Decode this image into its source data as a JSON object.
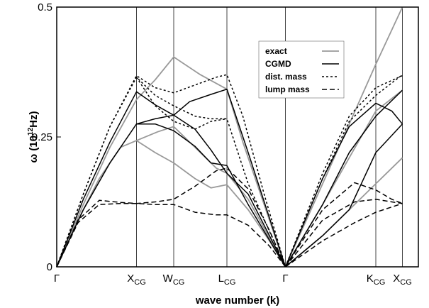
{
  "chart_data": {
    "type": "line",
    "title": "",
    "xlabel": "wave number (k)",
    "ylabel": "ω (10¹²Hz)",
    "ylabel_parts": {
      "prefix": "ω (10",
      "sup": "12",
      "suffix": "Hz)"
    },
    "ylim": [
      0,
      0.5
    ],
    "yticks": [
      "0",
      "0.25",
      "0.5"
    ],
    "xlim": [
      0,
      6.8
    ],
    "xticks": [
      {
        "label": "Γ",
        "sub": "",
        "x": 0
      },
      {
        "label": "X",
        "sub": "CG",
        "x": 1.5
      },
      {
        "label": "W",
        "sub": "CG",
        "x": 2.2
      },
      {
        "label": "L",
        "sub": "CG",
        "x": 3.2
      },
      {
        "label": "Γ",
        "sub": "",
        "x": 4.3
      },
      {
        "label": "K",
        "sub": "CG",
        "x": 6.0
      },
      {
        "label": "X",
        "sub": "CG",
        "x": 6.5
      }
    ],
    "grid": "vertical lines at symmetry points",
    "legend_position": "top-right",
    "series": [
      {
        "name": "exact",
        "style": "solid",
        "color": "#999999",
        "width": 1.8,
        "curves": [
          [
            [
              0,
              0
            ],
            [
              0.4,
              0.09
            ],
            [
              0.8,
              0.17
            ],
            [
              1.2,
              0.23
            ],
            [
              1.5,
              0.243
            ],
            [
              1.85,
              0.22
            ],
            [
              2.2,
              0.2
            ],
            [
              2.6,
              0.17
            ],
            [
              2.9,
              0.152
            ],
            [
              3.2,
              0.158
            ],
            [
              3.6,
              0.11
            ],
            [
              4.0,
              0.05
            ],
            [
              4.3,
              0
            ]
          ],
          [
            [
              0,
              0
            ],
            [
              0.5,
              0.12
            ],
            [
              1.0,
              0.23
            ],
            [
              1.5,
              0.322
            ],
            [
              1.85,
              0.36
            ],
            [
              2.2,
              0.404
            ],
            [
              2.7,
              0.37
            ],
            [
              3.2,
              0.342
            ],
            [
              3.5,
              0.24
            ],
            [
              3.9,
              0.12
            ],
            [
              4.3,
              0
            ]
          ],
          [
            [
              1.5,
              0.243
            ],
            [
              1.9,
              0.26
            ],
            [
              2.2,
              0.27
            ],
            [
              2.6,
              0.23
            ],
            [
              3.0,
              0.19
            ],
            [
              3.2,
              0.18
            ],
            [
              3.6,
              0.13
            ],
            [
              4.3,
              0
            ]
          ],
          [
            [
              4.3,
              0
            ],
            [
              5.0,
              0.16
            ],
            [
              6.0,
              0.39
            ],
            [
              6.5,
              0.5
            ]
          ],
          [
            [
              4.3,
              0
            ],
            [
              5.0,
              0.12
            ],
            [
              6.0,
              0.3
            ],
            [
              6.5,
              0.34
            ]
          ],
          [
            [
              4.3,
              0
            ],
            [
              5.0,
              0.06
            ],
            [
              6.0,
              0.16
            ],
            [
              6.5,
              0.21
            ]
          ]
        ]
      },
      {
        "name": "CGMD",
        "style": "solid",
        "color": "#000000",
        "width": 1.5,
        "curves": [
          [
            [
              0,
              0
            ],
            [
              0.5,
              0.13
            ],
            [
              1.0,
              0.24
            ],
            [
              1.5,
              0.337
            ],
            [
              1.85,
              0.312
            ],
            [
              2.2,
              0.292
            ],
            [
              2.5,
              0.318
            ],
            [
              2.9,
              0.332
            ],
            [
              3.2,
              0.342
            ],
            [
              3.6,
              0.22
            ],
            [
              4.3,
              0
            ]
          ],
          [
            [
              0,
              0
            ],
            [
              0.5,
              0.11
            ],
            [
              1.0,
              0.2
            ],
            [
              1.5,
              0.275
            ],
            [
              1.85,
              0.285
            ],
            [
              2.2,
              0.292
            ],
            [
              2.6,
              0.265
            ],
            [
              2.9,
              0.225
            ],
            [
              3.2,
              0.18
            ],
            [
              3.6,
              0.14
            ],
            [
              4.3,
              0
            ]
          ],
          [
            [
              1.5,
              0.275
            ],
            [
              1.85,
              0.275
            ],
            [
              2.2,
              0.262
            ],
            [
              2.6,
              0.232
            ],
            [
              2.9,
              0.2
            ],
            [
              3.2,
              0.195
            ],
            [
              3.6,
              0.12
            ],
            [
              4.3,
              0
            ]
          ],
          [
            [
              4.3,
              0
            ],
            [
              5.0,
              0.17
            ],
            [
              5.5,
              0.27
            ],
            [
              6.0,
              0.315
            ],
            [
              6.3,
              0.3
            ],
            [
              6.5,
              0.275
            ]
          ],
          [
            [
              4.3,
              0
            ],
            [
              5.0,
              0.12
            ],
            [
              5.5,
              0.22
            ],
            [
              6.0,
              0.29
            ],
            [
              6.5,
              0.34
            ]
          ],
          [
            [
              4.3,
              0
            ],
            [
              5.0,
              0.06
            ],
            [
              5.5,
              0.11
            ],
            [
              6.0,
              0.22
            ],
            [
              6.5,
              0.275
            ]
          ]
        ]
      },
      {
        "name": "dist. mass",
        "style": "dotted",
        "color": "#000000",
        "width": 1.5,
        "curves": [
          [
            [
              0,
              0
            ],
            [
              0.5,
              0.14
            ],
            [
              1.0,
              0.27
            ],
            [
              1.5,
              0.368
            ],
            [
              1.85,
              0.345
            ],
            [
              2.2,
              0.335
            ],
            [
              2.6,
              0.35
            ],
            [
              3.0,
              0.365
            ],
            [
              3.2,
              0.37
            ],
            [
              3.5,
              0.29
            ],
            [
              3.9,
              0.14
            ],
            [
              4.3,
              0
            ]
          ],
          [
            [
              0,
              0
            ],
            [
              0.5,
              0.14
            ],
            [
              1.0,
              0.27
            ],
            [
              1.5,
              0.365
            ],
            [
              1.85,
              0.33
            ],
            [
              2.2,
              0.31
            ],
            [
              2.6,
              0.29
            ],
            [
              2.9,
              0.285
            ],
            [
              3.2,
              0.285
            ],
            [
              3.6,
              0.16
            ],
            [
              4.3,
              0
            ]
          ],
          [
            [
              1.5,
              0.365
            ],
            [
              1.85,
              0.31
            ],
            [
              2.2,
              0.28
            ],
            [
              2.6,
              0.265
            ],
            [
              2.9,
              0.28
            ],
            [
              3.2,
              0.285
            ]
          ],
          [
            [
              4.3,
              0
            ],
            [
              5.0,
              0.18
            ],
            [
              5.5,
              0.29
            ],
            [
              6.0,
              0.345
            ],
            [
              6.5,
              0.368
            ]
          ],
          [
            [
              4.3,
              0
            ],
            [
              5.0,
              0.17
            ],
            [
              5.5,
              0.28
            ],
            [
              6.0,
              0.33
            ],
            [
              6.5,
              0.37
            ]
          ]
        ]
      },
      {
        "name": "lump mass",
        "style": "dashed",
        "color": "#000000",
        "width": 1.5,
        "curves": [
          [
            [
              0,
              0
            ],
            [
              0.4,
              0.09
            ],
            [
              0.8,
              0.128
            ],
            [
              1.2,
              0.124
            ],
            [
              1.5,
              0.122
            ],
            [
              1.85,
              0.125
            ],
            [
              2.2,
              0.13
            ],
            [
              2.6,
              0.155
            ],
            [
              3.0,
              0.185
            ],
            [
              3.2,
              0.19
            ],
            [
              3.6,
              0.15
            ],
            [
              4.0,
              0.07
            ],
            [
              4.3,
              0
            ]
          ],
          [
            [
              0,
              0
            ],
            [
              0.4,
              0.085
            ],
            [
              0.8,
              0.12
            ],
            [
              1.2,
              0.122
            ],
            [
              1.5,
              0.122
            ],
            [
              1.85,
              0.12
            ],
            [
              2.2,
              0.12
            ],
            [
              2.6,
              0.105
            ],
            [
              3.0,
              0.1
            ],
            [
              3.2,
              0.1
            ],
            [
              3.6,
              0.08
            ],
            [
              4.0,
              0.04
            ],
            [
              4.3,
              0
            ]
          ],
          [
            [
              4.3,
              0
            ],
            [
              5.0,
              0.11
            ],
            [
              5.6,
              0.162
            ],
            [
              6.0,
              0.148
            ],
            [
              6.3,
              0.13
            ],
            [
              6.5,
              0.122
            ]
          ],
          [
            [
              4.3,
              0
            ],
            [
              5.0,
              0.09
            ],
            [
              5.6,
              0.125
            ],
            [
              6.0,
              0.13
            ],
            [
              6.3,
              0.125
            ],
            [
              6.5,
              0.122
            ]
          ],
          [
            [
              4.3,
              0
            ],
            [
              5.0,
              0.05
            ],
            [
              5.6,
              0.085
            ],
            [
              6.0,
              0.105
            ],
            [
              6.5,
              0.122
            ]
          ]
        ]
      }
    ]
  }
}
